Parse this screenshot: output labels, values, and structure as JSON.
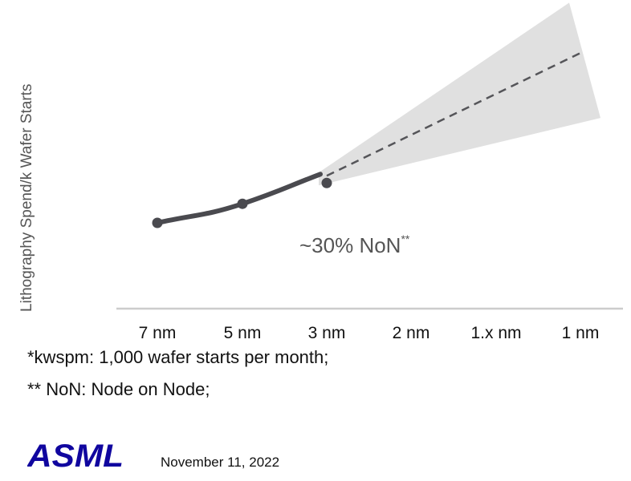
{
  "chart_data": {
    "type": "line",
    "ylabel": "Lithography Spend/k Wafer Starts",
    "xlabel": "",
    "categories": [
      "7 nm",
      "5 nm",
      "3 nm",
      "2 nm",
      "1.x nm",
      "1 nm"
    ],
    "series": [
      {
        "style": "solid",
        "values": [
          1.0,
          1.3,
          1.69,
          null,
          null,
          null
        ]
      },
      {
        "style": "dashed",
        "values": [
          null,
          null,
          1.69,
          2.2,
          2.86,
          3.71
        ]
      }
    ],
    "band": {
      "from_category": "3 nm",
      "to_category": "1 nm",
      "lower": [
        1.69,
        null,
        null,
        2.55
      ],
      "upper": [
        1.69,
        null,
        null,
        4.45
      ]
    },
    "annotation": {
      "text": "~30% NoN",
      "superscript": "**"
    },
    "colors": {
      "line": "#4a4a4f",
      "band": "#e0e0e0",
      "axis": "#cccccc",
      "label": "#555555"
    }
  },
  "footnotes": [
    "*kwspm: 1,000 wafer starts per month;",
    "** NoN: Node on Node;"
  ],
  "logo": {
    "text": "ASML",
    "color": "#10069f"
  },
  "date": "November 11, 2022"
}
